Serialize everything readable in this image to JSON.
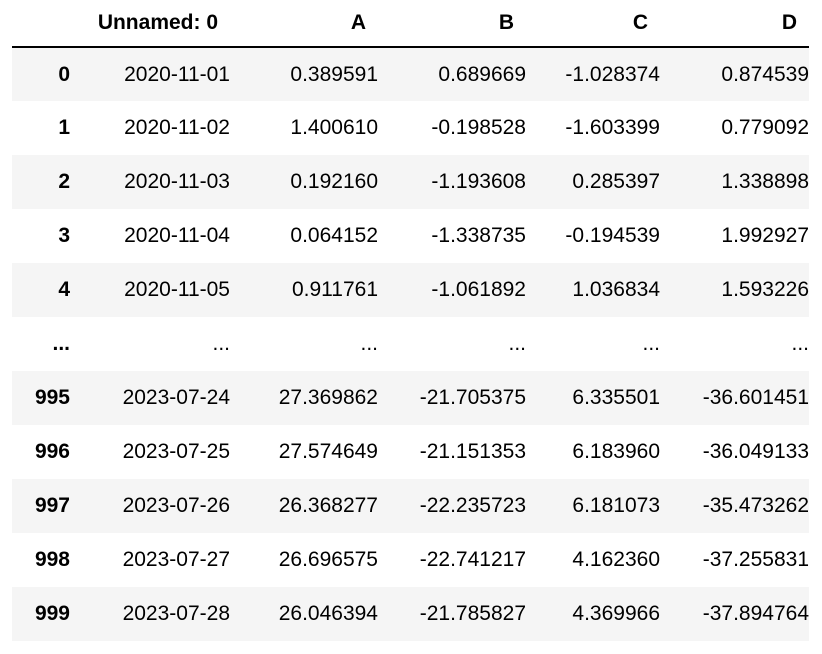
{
  "table": {
    "columns": [
      "",
      "Unnamed: 0",
      "A",
      "B",
      "C",
      "D"
    ],
    "rows": [
      {
        "index": "0",
        "cells": [
          "2020-11-01",
          "0.389591",
          "0.689669",
          "-1.028374",
          "0.874539"
        ]
      },
      {
        "index": "1",
        "cells": [
          "2020-11-02",
          "1.400610",
          "-0.198528",
          "-1.603399",
          "0.779092"
        ]
      },
      {
        "index": "2",
        "cells": [
          "2020-11-03",
          "0.192160",
          "-1.193608",
          "0.285397",
          "1.338898"
        ]
      },
      {
        "index": "3",
        "cells": [
          "2020-11-04",
          "0.064152",
          "-1.338735",
          "-0.194539",
          "1.992927"
        ]
      },
      {
        "index": "4",
        "cells": [
          "2020-11-05",
          "0.911761",
          "-1.061892",
          "1.036834",
          "1.593226"
        ]
      },
      {
        "index": "...",
        "cells": [
          "...",
          "...",
          "...",
          "...",
          "..."
        ]
      },
      {
        "index": "995",
        "cells": [
          "2023-07-24",
          "27.369862",
          "-21.705375",
          "6.335501",
          "-36.601451"
        ]
      },
      {
        "index": "996",
        "cells": [
          "2023-07-25",
          "27.574649",
          "-21.151353",
          "6.183960",
          "-36.049133"
        ]
      },
      {
        "index": "997",
        "cells": [
          "2023-07-26",
          "26.368277",
          "-22.235723",
          "6.181073",
          "-35.473262"
        ]
      },
      {
        "index": "998",
        "cells": [
          "2023-07-27",
          "26.696575",
          "-22.741217",
          "4.162360",
          "-37.255831"
        ]
      },
      {
        "index": "999",
        "cells": [
          "2023-07-28",
          "26.046394",
          "-21.785827",
          "4.369966",
          "-37.894764"
        ]
      }
    ]
  },
  "colors": {
    "stripe": "#f5f5f5",
    "header_rule": "#000000"
  }
}
